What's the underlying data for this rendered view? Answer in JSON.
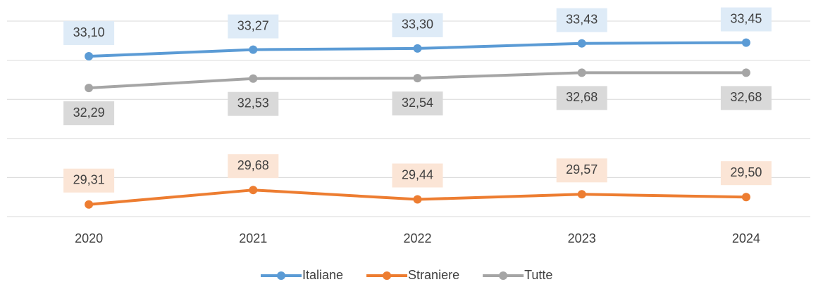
{
  "chart_data": {
    "type": "line",
    "categories": [
      "2020",
      "2021",
      "2022",
      "2023",
      "2024"
    ],
    "series": [
      {
        "name": "Italiane",
        "color": "#5b9bd5",
        "values": [
          33.1,
          33.27,
          33.3,
          33.43,
          33.45
        ],
        "value_labels": [
          "33,10",
          "33,27",
          "33,30",
          "33,43",
          "33,45"
        ]
      },
      {
        "name": "Straniere",
        "color": "#ed7d31",
        "values": [
          29.31,
          29.68,
          29.44,
          29.57,
          29.5
        ],
        "value_labels": [
          "29,31",
          "29,68",
          "29,44",
          "29,57",
          "29,50"
        ]
      },
      {
        "name": "Tutte",
        "color": "#a5a5a5",
        "values": [
          32.29,
          32.53,
          32.54,
          32.68,
          32.68
        ],
        "value_labels": [
          "32,29",
          "32,53",
          "32,54",
          "32,68",
          "32,68"
        ]
      }
    ],
    "ylim": [
      29,
      34
    ],
    "yticks": [
      29,
      30,
      31,
      32,
      33,
      34
    ],
    "grid": true,
    "legend": "bottom"
  }
}
